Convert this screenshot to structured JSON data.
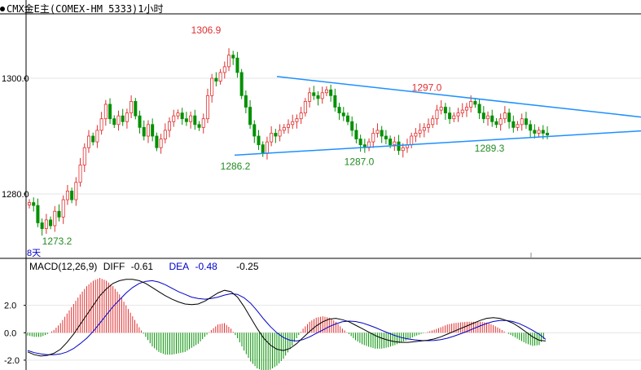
{
  "title": "CMX金E主(COMEX-HM 5333)1小时",
  "period_label": "8天",
  "macd": {
    "label": "MACD(12,26,9)",
    "diff_label": "DIFF",
    "diff_value": "-0.61",
    "dea_label": "DEA",
    "dea_value": "-0.48",
    "macd_value": "-0.25"
  },
  "colors": {
    "up": "#e03030",
    "down": "#009000",
    "trendline": "#1e90ff",
    "grid": "#e6e6e6",
    "dea": "#0000cc",
    "diff": "#000000"
  },
  "chart_data": [
    {
      "type": "candlestick",
      "ylim": [
        1269,
        1311
      ],
      "ticks": [
        "1300.0",
        "1280.0"
      ],
      "annotations": [
        {
          "label": "1306.9",
          "value": 1306.9,
          "color": "red"
        },
        {
          "label": "1273.2",
          "value": 1273.2,
          "color": "green"
        },
        {
          "label": "1286.2",
          "value": 1286.2,
          "color": "green"
        },
        {
          "label": "1287.0",
          "value": 1287.0,
          "color": "green"
        },
        {
          "label": "1297.0",
          "value": 1297.0,
          "color": "red"
        },
        {
          "label": "1289.3",
          "value": 1289.3,
          "color": "green"
        }
      ],
      "closes": [
        1278.5,
        1278.0,
        1275.0,
        1274.0,
        1275.5,
        1274.5,
        1277.0,
        1276.0,
        1279.0,
        1280.5,
        1279.0,
        1282.0,
        1285.0,
        1288.0,
        1290.0,
        1289.0,
        1291.0,
        1293.0,
        1295.5,
        1293.0,
        1292.0,
        1293.5,
        1292.5,
        1294.0,
        1296.0,
        1293.5,
        1291.5,
        1290.0,
        1292.0,
        1290.0,
        1288.0,
        1289.5,
        1291.0,
        1292.5,
        1293.5,
        1294.0,
        1293.0,
        1292.5,
        1293.5,
        1292.0,
        1291.5,
        1293.0,
        1297.0,
        1300.0,
        1299.5,
        1301.0,
        1302.0,
        1304.0,
        1303.5,
        1301.0,
        1297.0,
        1295.0,
        1292.0,
        1290.0,
        1288.5,
        1287.0,
        1289.0,
        1290.5,
        1290.0,
        1291.0,
        1291.5,
        1292.0,
        1292.5,
        1293.0,
        1294.0,
        1296.0,
        1297.5,
        1297.0,
        1296.5,
        1297.5,
        1298.0,
        1297.0,
        1295.0,
        1294.0,
        1293.5,
        1292.5,
        1291.0,
        1289.5,
        1288.5,
        1288.0,
        1289.0,
        1290.5,
        1291.0,
        1290.0,
        1289.5,
        1288.5,
        1289.0,
        1287.5,
        1288.0,
        1288.5,
        1290.0,
        1290.5,
        1291.0,
        1291.5,
        1292.0,
        1293.0,
        1294.5,
        1295.0,
        1294.0,
        1293.0,
        1293.5,
        1294.0,
        1294.5,
        1295.0,
        1296.0,
        1295.5,
        1294.0,
        1293.0,
        1293.5,
        1292.5,
        1292.0,
        1293.0,
        1294.0,
        1292.5,
        1291.5,
        1292.0,
        1293.0,
        1292.0,
        1291.0,
        1290.5,
        1291.0,
        1290.5,
        1290.2
      ]
    },
    {
      "type": "macd",
      "ylim": [
        -2.6,
        4.3
      ],
      "ticks": [
        "2.0",
        "0.0",
        "-2.0"
      ],
      "diff": [
        -1.4,
        -1.6,
        -1.7,
        -1.65,
        -1.5,
        -1.2,
        -0.7,
        -0.1,
        0.6,
        1.3,
        2.0,
        2.7,
        3.2,
        3.6,
        3.8,
        3.9,
        3.9,
        3.8,
        3.6,
        3.3,
        3.0,
        2.7,
        2.45,
        2.25,
        2.1,
        2.05,
        2.1,
        2.3,
        2.6,
        2.9,
        3.1,
        3.0,
        2.6,
        1.9,
        1.1,
        0.3,
        -0.4,
        -0.9,
        -1.2,
        -1.3,
        -1.15,
        -0.8,
        -0.35,
        0.1,
        0.5,
        0.8,
        1.0,
        1.05,
        0.95,
        0.8,
        0.55,
        0.3,
        0.05,
        -0.2,
        -0.4,
        -0.55,
        -0.65,
        -0.7,
        -0.7,
        -0.65,
        -0.6,
        -0.55,
        -0.45,
        -0.3,
        -0.1,
        0.1,
        0.3,
        0.5,
        0.7,
        0.9,
        1.05,
        1.1,
        1.05,
        0.9,
        0.7,
        0.4,
        0.05,
        -0.3,
        -0.55,
        -0.6
      ],
      "dea": [
        -1.3,
        -1.45,
        -1.55,
        -1.6,
        -1.6,
        -1.55,
        -1.4,
        -1.15,
        -0.8,
        -0.4,
        0.1,
        0.7,
        1.3,
        1.9,
        2.4,
        2.9,
        3.3,
        3.6,
        3.75,
        3.8,
        3.7,
        3.5,
        3.25,
        3.0,
        2.8,
        2.6,
        2.5,
        2.45,
        2.5,
        2.6,
        2.75,
        2.85,
        2.8,
        2.55,
        2.15,
        1.6,
        1.0,
        0.45,
        0.0,
        -0.35,
        -0.55,
        -0.6,
        -0.5,
        -0.3,
        -0.05,
        0.2,
        0.45,
        0.65,
        0.8,
        0.85,
        0.82,
        0.72,
        0.56,
        0.38,
        0.18,
        -0.02,
        -0.2,
        -0.35,
        -0.45,
        -0.52,
        -0.56,
        -0.58,
        -0.56,
        -0.5,
        -0.4,
        -0.25,
        -0.08,
        0.1,
        0.3,
        0.5,
        0.68,
        0.82,
        0.9,
        0.9,
        0.82,
        0.66,
        0.44,
        0.18,
        -0.1,
        -0.48
      ]
    }
  ]
}
